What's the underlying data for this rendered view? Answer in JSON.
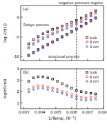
{
  "chart_data": [
    {
      "type": "scatter",
      "panel_label": "(a)",
      "y_label": "log₁₀(τ[s])",
      "annotations": [
        "Debye process",
        "structural process",
        "negative pressure regime"
      ],
      "vlines": [
        0.0063
      ],
      "xlim": [
        0.0028,
        0.008
      ],
      "xticks": [
        0.003,
        0.004,
        0.005,
        0.006,
        0.007,
        0.008
      ],
      "ylim": [
        -11,
        3
      ],
      "yticks": [
        -10,
        -5,
        0
      ],
      "tick_labels": "y",
      "legend": "lower right",
      "x": [
        0.0033,
        0.0036,
        0.0039,
        0.0042,
        0.0045,
        0.0048,
        0.0051,
        0.0054,
        0.0057,
        0.006,
        0.0063,
        0.0066,
        0.0069,
        0.0072,
        0.0075
      ],
      "series": [
        {
          "name": "bulk",
          "color": "#000000",
          "marker": "square",
          "values": [
            -6.7,
            -5.7,
            -4.9,
            -4.2,
            -3.7,
            -3.1,
            -2.7,
            -2.2,
            -1.8,
            -1.3,
            -0.8,
            -0.2,
            0.4,
            1.0,
            1.7
          ]
        },
        {
          "name": "8 nm",
          "color": "#e8302a",
          "marker": "circle",
          "values": [
            -7.5,
            -6.6,
            -5.8,
            -5.1,
            -4.6,
            -4.0,
            -3.5,
            -3.0,
            -2.5,
            -1.95,
            -1.4,
            -0.8,
            -0.15,
            0.6,
            1.35
          ]
        },
        {
          "name": "4 nm",
          "color": "#3a5fcd",
          "marker": "triangle",
          "values": [
            -7.8,
            -6.9,
            -6.1,
            -5.4,
            -4.9,
            -4.3,
            -3.8,
            -3.25,
            -2.8,
            -2.25,
            -1.7,
            -1.1,
            -0.45,
            0.3,
            1.05
          ]
        },
        {
          "name": "bulk",
          "color": "#000000",
          "marker": "square",
          "values": [
            -9.6,
            -8.9,
            -8.2,
            -7.5,
            -6.9,
            -6.2,
            -5.6,
            -4.9,
            -4.3,
            -3.6,
            -2.9,
            -2.2,
            -1.5,
            -0.8,
            -0.1
          ]
        },
        {
          "name": "8 nm",
          "color": "#e8302a",
          "marker": "circle",
          "values": [
            -9.7,
            -9.0,
            -8.3,
            -7.6,
            -7.0,
            -6.3,
            -5.7,
            -5.0,
            -4.4,
            -3.7,
            -3.0,
            -2.3,
            -1.6,
            -0.9,
            -0.2
          ]
        },
        {
          "name": "4 nm",
          "color": "#3a5fcd",
          "marker": "triangle",
          "values": [
            -9.8,
            -9.1,
            -8.4,
            -7.7,
            -7.1,
            -6.4,
            -5.8,
            -5.1,
            -4.5,
            -3.8,
            -3.1,
            -2.4,
            -1.7,
            -1.0,
            -0.3
          ]
        }
      ]
    },
    {
      "type": "scatter",
      "panel_label": "(b)",
      "y_label": "log(τD/τα)",
      "x_label": "1/Temp. [K⁻¹]",
      "vlines": [
        0.0063
      ],
      "xlim": [
        0.0028,
        0.008
      ],
      "xticks": [
        0.003,
        0.004,
        0.005,
        0.006,
        0.007,
        0.008
      ],
      "ylim": [
        0.5,
        4
      ],
      "yticks": [
        1,
        2,
        3,
        4
      ],
      "legend": "upper right",
      "x": [
        0.0033,
        0.0036,
        0.0039,
        0.0042,
        0.0045,
        0.0048,
        0.0051,
        0.0054,
        0.0057,
        0.006,
        0.0063,
        0.0066,
        0.0069,
        0.0072,
        0.0075
      ],
      "series": [
        {
          "name": "bulk",
          "color": "#000000",
          "marker": "square",
          "values": [
            2.9,
            3.2,
            3.3,
            3.3,
            3.2,
            3.1,
            2.9,
            2.7,
            2.5,
            2.3,
            2.1,
            2.0,
            1.9,
            1.85,
            1.8
          ]
        },
        {
          "name": "8 nm",
          "color": "#e8302a",
          "marker": "circle",
          "values": [
            2.2,
            2.4,
            2.5,
            2.5,
            2.4,
            2.3,
            2.2,
            2.0,
            1.9,
            1.75,
            1.6,
            1.5,
            1.45,
            1.5,
            1.55
          ]
        },
        {
          "name": "4 nm",
          "color": "#3a5fcd",
          "marker": "triangle",
          "values": [
            2.0,
            2.2,
            2.3,
            2.3,
            2.2,
            2.1,
            2.0,
            1.85,
            1.7,
            1.55,
            1.4,
            1.3,
            1.25,
            1.3,
            1.35
          ]
        }
      ]
    }
  ]
}
